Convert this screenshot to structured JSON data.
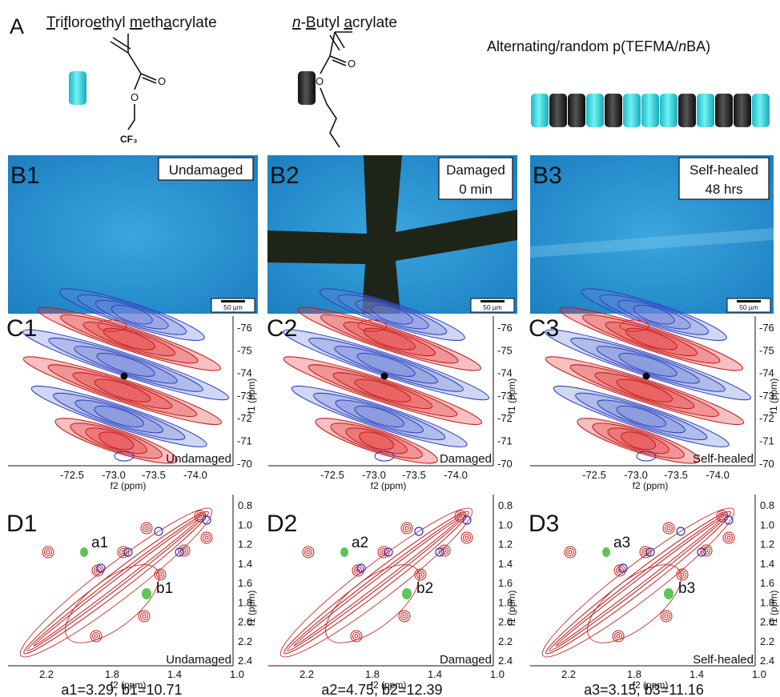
{
  "panel_a": {
    "label": "A",
    "monomers": [
      {
        "name_parts": [
          "T",
          "ri",
          "f",
          "loro",
          "e",
          "thyl ",
          "m",
          "eth",
          "a",
          "crylate"
        ],
        "carbonyl_o": "O",
        "ester_o": "O",
        "substituent": "CF₃"
      },
      {
        "name_parts": [
          "n",
          "-",
          "B",
          "utyl ",
          "a",
          "crylate"
        ],
        "carbonyl_o": "O",
        "ester_o": "O"
      }
    ],
    "polymer_parts": [
      "Alternating/random p(TEFMA/",
      "n",
      "BA)"
    ]
  },
  "panels": [
    {
      "label_b": "B1",
      "status_lines": [
        "Undamaged"
      ],
      "scale": "50 µm",
      "label_c": "C1",
      "c_corner": "Undamaged",
      "label_d": "D1",
      "peak_a": "a1",
      "peak_b": "b1",
      "d_corner": "Undamaged",
      "caption": "a1=3.29, b1=10.71"
    },
    {
      "label_b": "B2",
      "status_lines": [
        "Damaged",
        "0 min"
      ],
      "scale": "50 µm",
      "label_c": "C2",
      "c_corner": "Damaged",
      "label_d": "D2",
      "peak_a": "a2",
      "peak_b": "b2",
      "d_corner": "Damaged",
      "caption": "a2=4.75, b2=12.39"
    },
    {
      "label_b": "B3",
      "status_lines": [
        "Self-healed",
        "48 hrs"
      ],
      "scale": "50 µm",
      "label_c": "C3",
      "c_corner": "Self-healed",
      "label_d": "D3",
      "peak_a": "a3",
      "peak_b": "b3",
      "d_corner": "Self-healed",
      "caption": "a3=3.15, b3=11.16"
    }
  ],
  "c_axes": {
    "f1_label": "f1 (ppm)",
    "f1_ticks": [
      "-76",
      "-75",
      "-74",
      "-73",
      "-72",
      "-71",
      "-70"
    ],
    "f2_label": "f2 (ppm)",
    "f2_ticks": [
      "-72.5",
      "-73.0",
      "-73.5",
      "-74.0"
    ]
  },
  "d_axes": {
    "f1_label": "f1 (ppm)",
    "f1_ticks": [
      "0.8",
      "1.0",
      "1.2",
      "1.4",
      "1.6",
      "1.8",
      "2.0",
      "2.2",
      "2.4"
    ],
    "f2_label": "f2 (ppm)",
    "f2_ticks": [
      "2.2",
      "1.8",
      "1.4",
      "1.0"
    ]
  }
}
